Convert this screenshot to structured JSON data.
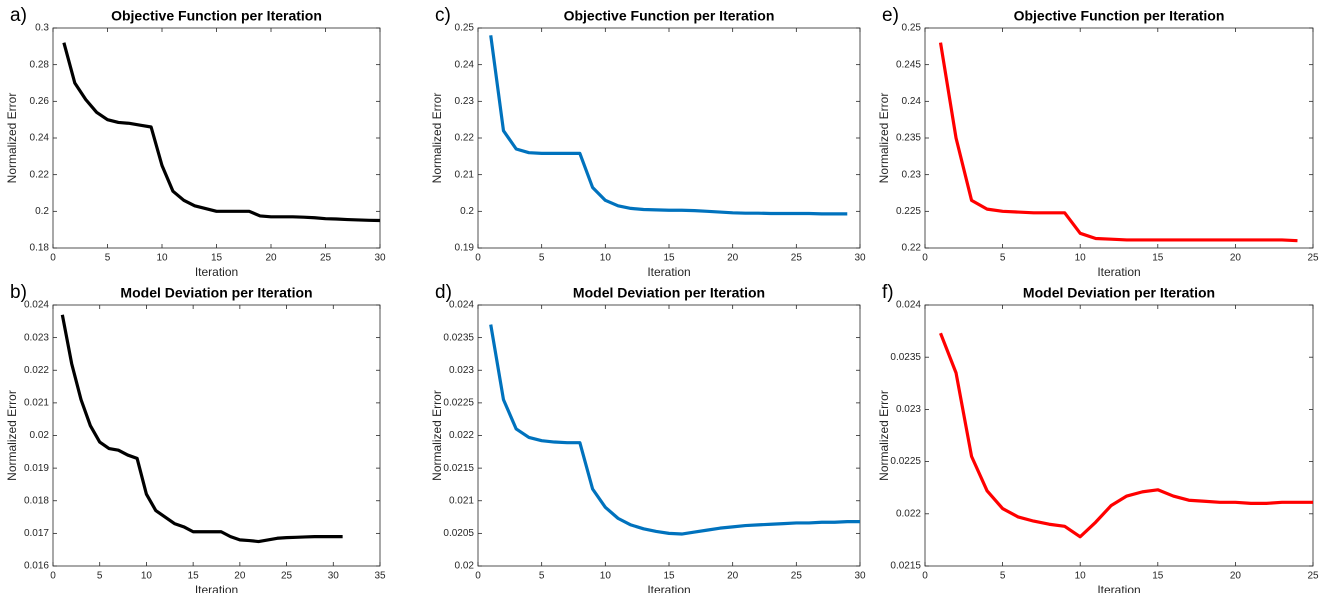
{
  "chart_data": [
    {
      "type": "line",
      "panel": "a)",
      "title": "Objective Function per Iteration",
      "xlabel": "Iteration",
      "ylabel": "Normalized Error",
      "color": "#000000",
      "x": [
        1,
        2,
        3,
        4,
        5,
        6,
        7,
        8,
        9,
        10,
        11,
        12,
        13,
        14,
        15,
        16,
        17,
        18,
        19,
        20,
        21,
        22,
        23,
        24,
        25,
        26,
        27,
        28,
        29,
        30
      ],
      "values": [
        0.292,
        0.27,
        0.261,
        0.254,
        0.25,
        0.2485,
        0.248,
        0.247,
        0.246,
        0.225,
        0.211,
        0.206,
        0.203,
        0.2015,
        0.2,
        0.2,
        0.2,
        0.2,
        0.1975,
        0.197,
        0.197,
        0.197,
        0.1968,
        0.1965,
        0.196,
        0.1958,
        0.1955,
        0.1953,
        0.1951,
        0.195
      ],
      "xlim": [
        0,
        30
      ],
      "xticks": [
        0,
        5,
        10,
        15,
        20,
        25,
        30
      ],
      "ylim": [
        0.18,
        0.3
      ],
      "yticks": [
        0.18,
        0.2,
        0.22,
        0.24,
        0.26,
        0.28,
        0.3
      ],
      "grid": false
    },
    {
      "type": "line",
      "panel": "b)",
      "title": "Model Deviation per Iteration",
      "xlabel": "Iteration",
      "ylabel": "Normalized Error",
      "color": "#000000",
      "x": [
        1,
        2,
        3,
        4,
        5,
        6,
        7,
        8,
        9,
        10,
        11,
        12,
        13,
        14,
        15,
        16,
        17,
        18,
        19,
        20,
        21,
        22,
        23,
        24,
        25,
        26,
        27,
        28,
        29,
        30,
        31
      ],
      "values": [
        0.0237,
        0.0222,
        0.0211,
        0.0203,
        0.0198,
        0.0196,
        0.01955,
        0.0194,
        0.0193,
        0.0182,
        0.0177,
        0.0175,
        0.0173,
        0.0172,
        0.01705,
        0.01705,
        0.01705,
        0.01705,
        0.0169,
        0.0168,
        0.01678,
        0.01675,
        0.0168,
        0.01685,
        0.01687,
        0.01688,
        0.01689,
        0.0169,
        0.0169,
        0.0169,
        0.0169
      ],
      "xlim": [
        0,
        35
      ],
      "xticks": [
        0,
        5,
        10,
        15,
        20,
        25,
        30,
        35
      ],
      "ylim": [
        0.016,
        0.024
      ],
      "yticks": [
        0.016,
        0.017,
        0.018,
        0.019,
        0.02,
        0.021,
        0.022,
        0.023,
        0.024
      ],
      "grid": false
    },
    {
      "type": "line",
      "panel": "c)",
      "title": "Objective Function per Iteration",
      "xlabel": "Iteration",
      "ylabel": "Normalized Error",
      "color": "#0072bd",
      "x": [
        1,
        2,
        3,
        4,
        5,
        6,
        7,
        8,
        9,
        10,
        11,
        12,
        13,
        14,
        15,
        16,
        17,
        18,
        19,
        20,
        21,
        22,
        23,
        24,
        25,
        26,
        27,
        28,
        29
      ],
      "values": [
        0.248,
        0.222,
        0.217,
        0.216,
        0.2158,
        0.2158,
        0.2158,
        0.2158,
        0.2065,
        0.203,
        0.2015,
        0.2008,
        0.2005,
        0.2004,
        0.2003,
        0.2003,
        0.2002,
        0.2,
        0.1998,
        0.1996,
        0.1995,
        0.1995,
        0.1994,
        0.1994,
        0.1994,
        0.1994,
        0.1993,
        0.1993,
        0.1993
      ],
      "xlim": [
        0,
        30
      ],
      "xticks": [
        0,
        5,
        10,
        15,
        20,
        25,
        30
      ],
      "ylim": [
        0.19,
        0.25
      ],
      "yticks": [
        0.19,
        0.2,
        0.21,
        0.22,
        0.23,
        0.24,
        0.25
      ],
      "grid": false
    },
    {
      "type": "line",
      "panel": "d)",
      "title": "Model Deviation per Iteration",
      "xlabel": "Iteration",
      "ylabel": "Normalized Error",
      "color": "#0072bd",
      "x": [
        1,
        2,
        3,
        4,
        5,
        6,
        7,
        8,
        9,
        10,
        11,
        12,
        13,
        14,
        15,
        16,
        17,
        18,
        19,
        20,
        21,
        22,
        23,
        24,
        25,
        26,
        27,
        28,
        29,
        30
      ],
      "values": [
        0.0237,
        0.02255,
        0.0221,
        0.02197,
        0.02192,
        0.0219,
        0.02189,
        0.02189,
        0.02118,
        0.0209,
        0.02073,
        0.02063,
        0.02057,
        0.02053,
        0.0205,
        0.02049,
        0.02052,
        0.02055,
        0.02058,
        0.0206,
        0.02062,
        0.02063,
        0.02064,
        0.02065,
        0.02066,
        0.02066,
        0.02067,
        0.02067,
        0.02068,
        0.02068
      ],
      "xlim": [
        0,
        30
      ],
      "xticks": [
        0,
        5,
        10,
        15,
        20,
        25,
        30
      ],
      "ylim": [
        0.02,
        0.024
      ],
      "yticks": [
        0.02,
        0.0205,
        0.021,
        0.0215,
        0.022,
        0.0225,
        0.023,
        0.0235,
        0.024
      ],
      "grid": false
    },
    {
      "type": "line",
      "panel": "e)",
      "title": "Objective Function per Iteration",
      "xlabel": "Iteration",
      "ylabel": "Normalized Error",
      "color": "#ff0000",
      "x": [
        1,
        2,
        3,
        4,
        5,
        6,
        7,
        8,
        9,
        10,
        11,
        12,
        13,
        14,
        15,
        16,
        17,
        18,
        19,
        20,
        21,
        22,
        23,
        24
      ],
      "values": [
        0.248,
        0.235,
        0.2265,
        0.2253,
        0.225,
        0.2249,
        0.2248,
        0.2248,
        0.2248,
        0.222,
        0.2213,
        0.2212,
        0.2211,
        0.2211,
        0.2211,
        0.2211,
        0.2211,
        0.2211,
        0.2211,
        0.2211,
        0.2211,
        0.2211,
        0.2211,
        0.221
      ],
      "xlim": [
        0,
        25
      ],
      "xticks": [
        0,
        5,
        10,
        15,
        20,
        25
      ],
      "ylim": [
        0.22,
        0.25
      ],
      "yticks": [
        0.22,
        0.225,
        0.23,
        0.235,
        0.24,
        0.245,
        0.25
      ],
      "grid": false
    },
    {
      "type": "line",
      "panel": "f)",
      "title": "Model Deviation per Iteration",
      "xlabel": "Iteration",
      "ylabel": "Normalized Error",
      "color": "#ff0000",
      "x": [
        1,
        2,
        3,
        4,
        5,
        6,
        7,
        8,
        9,
        10,
        11,
        12,
        13,
        14,
        15,
        16,
        17,
        18,
        19,
        20,
        21,
        22,
        23,
        24,
        25
      ],
      "values": [
        0.02373,
        0.02335,
        0.02255,
        0.02222,
        0.02205,
        0.02197,
        0.02193,
        0.0219,
        0.02188,
        0.02178,
        0.02192,
        0.02208,
        0.02217,
        0.02221,
        0.02223,
        0.02217,
        0.02213,
        0.02212,
        0.02211,
        0.02211,
        0.0221,
        0.0221,
        0.02211,
        0.02211,
        0.02211
      ],
      "xlim": [
        0,
        25
      ],
      "xticks": [
        0,
        5,
        10,
        15,
        20,
        25
      ],
      "ylim": [
        0.0215,
        0.024
      ],
      "yticks": [
        0.0215,
        0.022,
        0.0225,
        0.023,
        0.0235,
        0.024
      ],
      "grid": false
    }
  ]
}
